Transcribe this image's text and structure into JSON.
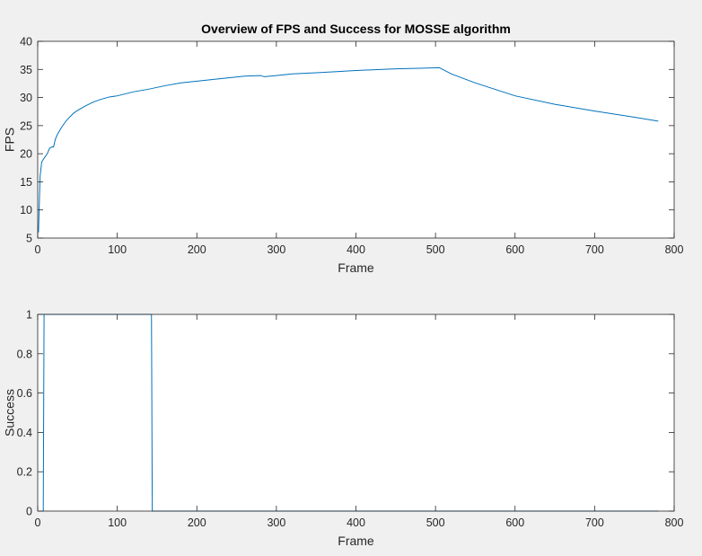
{
  "colors": {
    "figure_background": "#f0f0f0",
    "axes_background": "#ffffff",
    "axes_line": "#262626",
    "series_line": "#0072bd",
    "title_text": "#000000"
  },
  "chart_data": [
    {
      "type": "line",
      "title": "Overview of FPS and Success for MOSSE algorithm",
      "xlabel": "Frame",
      "ylabel": "FPS",
      "xlim": [
        0,
        800
      ],
      "ylim": [
        5,
        40
      ],
      "xticks": [
        0,
        100,
        200,
        300,
        400,
        500,
        600,
        700,
        800
      ],
      "yticks": [
        5,
        10,
        15,
        20,
        25,
        30,
        35,
        40
      ],
      "grid": false,
      "legend": null,
      "series": [
        {
          "color": "#0072bd",
          "x": [
            1,
            3,
            5,
            8,
            12,
            15,
            18,
            20,
            22,
            25,
            30,
            35,
            40,
            45,
            50,
            60,
            70,
            80,
            90,
            100,
            120,
            140,
            160,
            180,
            200,
            220,
            240,
            260,
            280,
            285,
            300,
            320,
            350,
            400,
            450,
            480,
            505,
            520,
            550,
            600,
            650,
            700,
            750,
            780
          ],
          "y": [
            6,
            16,
            18.5,
            19.2,
            20,
            21,
            21.2,
            21.2,
            22.5,
            23.5,
            24.7,
            25.7,
            26.5,
            27.2,
            27.7,
            28.5,
            29.2,
            29.7,
            30.1,
            30.3,
            31,
            31.5,
            32.1,
            32.6,
            32.9,
            33.2,
            33.5,
            33.8,
            33.9,
            33.7,
            33.9,
            34.2,
            34.4,
            34.8,
            35.1,
            35.2,
            35.3,
            34.2,
            32.6,
            30.3,
            28.8,
            27.6,
            26.5,
            25.8
          ]
        }
      ]
    },
    {
      "type": "line",
      "xlabel": "Frame",
      "ylabel": "Success",
      "xlim": [
        0,
        800
      ],
      "ylim": [
        0,
        1
      ],
      "xticks": [
        0,
        100,
        200,
        300,
        400,
        500,
        600,
        700,
        800
      ],
      "yticks": [
        0,
        0.2,
        0.4,
        0.6,
        0.8,
        1
      ],
      "grid": false,
      "legend": null,
      "series": [
        {
          "color": "#0072bd",
          "x": [
            1,
            7,
            8,
            143,
            144,
            780
          ],
          "y": [
            0,
            0,
            1,
            1,
            0,
            0
          ]
        }
      ]
    }
  ]
}
